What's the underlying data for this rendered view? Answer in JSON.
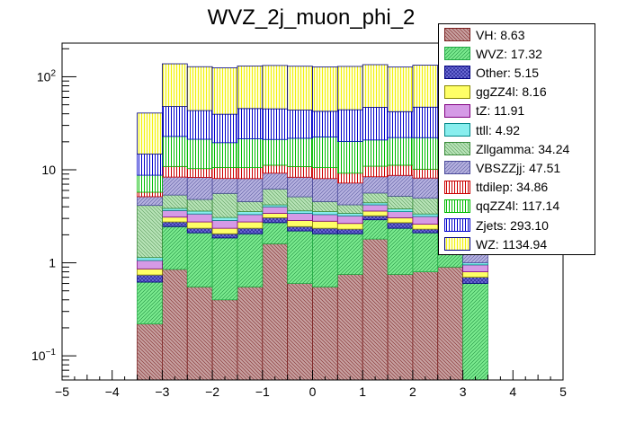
{
  "chart_data": {
    "type": "bar",
    "stacked": true,
    "title": "WVZ_2j_muon_phi_2",
    "xlabel": "",
    "ylabel": "",
    "xlim": [
      -5,
      5
    ],
    "ylim": [
      0.055,
      230
    ],
    "ylog": true,
    "grid": false,
    "legend_position": "top-right",
    "bin_edges": [
      -3.5,
      -3.0,
      -2.5,
      -2.0,
      -1.5,
      -1.0,
      -0.5,
      0.0,
      0.5,
      1.0,
      1.5,
      2.0,
      2.5,
      3.0,
      3.5
    ],
    "x_ticks": [
      "−5",
      "−4",
      "−3",
      "−2",
      "−1",
      "0",
      "1",
      "2",
      "3",
      "4",
      "5"
    ],
    "y_ticks": [
      {
        "value": 0.1,
        "base": "10",
        "exp": "−1"
      },
      {
        "value": 1,
        "label": "1"
      },
      {
        "value": 10,
        "label": "10"
      },
      {
        "value": 100,
        "base": "10",
        "exp": "2"
      }
    ],
    "series": [
      {
        "name": "VH",
        "legend": "VH: 8.63",
        "color": "#c8a2a2",
        "edge": "#7a2020",
        "pattern": "hatch-left",
        "values": [
          0.22,
          0.85,
          0.55,
          0.4,
          0.55,
          1.6,
          0.6,
          0.55,
          0.75,
          1.8,
          0.75,
          0.8,
          0.9,
          0.0
        ]
      },
      {
        "name": "WVZ",
        "legend": "WVZ: 17.32",
        "color": "#7cec90",
        "edge": "#22aa44",
        "pattern": "hatch-right",
        "values": [
          0.4,
          1.6,
          1.55,
          1.45,
          1.5,
          1.1,
          1.6,
          1.5,
          1.3,
          1.1,
          1.6,
          1.3,
          1.4,
          0.6
        ]
      },
      {
        "name": "Other",
        "legend": "Other: 5.15",
        "color": "#6f6fd8",
        "edge": "#000080",
        "pattern": "crosshatch",
        "values": [
          0.12,
          0.3,
          0.25,
          0.2,
          0.3,
          0.35,
          0.25,
          0.3,
          0.25,
          0.3,
          0.35,
          0.2,
          0.25,
          0.1
        ]
      },
      {
        "name": "ggZZ4l",
        "legend": "ggZZ4l: 8.16",
        "color": "#ffff66",
        "edge": "#888800",
        "pattern": "solid",
        "values": [
          0.12,
          0.35,
          0.4,
          0.3,
          0.4,
          0.35,
          0.4,
          0.45,
          0.35,
          0.4,
          0.35,
          0.3,
          0.35,
          0.1
        ]
      },
      {
        "name": "tZ",
        "legend": "tZ: 11.91",
        "color": "#d59ae6",
        "edge": "#800080",
        "pattern": "solid",
        "values": [
          0.2,
          0.55,
          0.6,
          0.5,
          0.55,
          0.6,
          0.55,
          0.5,
          0.55,
          0.6,
          0.5,
          0.55,
          0.5,
          0.15
        ]
      },
      {
        "name": "ttll",
        "legend": "ttll: 4.92",
        "color": "#88eeee",
        "edge": "#008888",
        "pattern": "solid",
        "values": [
          0.08,
          0.2,
          0.25,
          0.22,
          0.25,
          0.2,
          0.22,
          0.25,
          0.2,
          0.22,
          0.25,
          0.2,
          0.2,
          0.05
        ]
      },
      {
        "name": "Zllgamma",
        "legend": "Zllgamma: 34.24",
        "color": "#b8e4b8",
        "edge": "#3a8a3a",
        "pattern": "hatch-left",
        "values": [
          3.0,
          1.5,
          1.2,
          2.5,
          1.0,
          2.0,
          1.5,
          1.0,
          0.8,
          1.2,
          1.4,
          1.6,
          2.8,
          0.0
        ]
      },
      {
        "name": "VBSZZjj",
        "legend": "VBSZZjj: 47.51",
        "color": "#b6b2e0",
        "edge": "#4a4a9a",
        "pattern": "hatch-right",
        "values": [
          1.0,
          3.0,
          3.5,
          2.5,
          3.5,
          3.0,
          3.2,
          3.5,
          3.0,
          2.8,
          3.5,
          3.2,
          2.5,
          0.8
        ]
      },
      {
        "name": "ttdilep",
        "legend": "ttdilep: 34.86",
        "color": "#ffffff",
        "edge": "#cc0000",
        "pattern": "vlines",
        "values": [
          0.6,
          2.5,
          2.0,
          2.5,
          2.5,
          2.0,
          2.5,
          2.5,
          2.0,
          2.5,
          2.5,
          2.0,
          2.5,
          0.8
        ]
      },
      {
        "name": "qqZZ4l",
        "legend": "qqZZ4l: 117.14",
        "color": "#ffffff",
        "edge": "#00bb00",
        "pattern": "vlines",
        "values": [
          3.0,
          12.0,
          11.0,
          9.0,
          11.0,
          10.0,
          11.0,
          12.0,
          11.0,
          10.0,
          11.0,
          12.0,
          10.0,
          4.0
        ]
      },
      {
        "name": "Zjets",
        "legend": "Zjets: 293.10",
        "color": "#ffffff",
        "edge": "#0000cc",
        "pattern": "vlines",
        "values": [
          6.0,
          25.0,
          22.0,
          20.0,
          24.0,
          24.0,
          22.0,
          20.0,
          24.0,
          26.0,
          20.0,
          25.0,
          24.0,
          8.0
        ]
      },
      {
        "name": "WZ",
        "legend": "WZ: 1134.94",
        "color": "#ffffa0",
        "edge": "#000080",
        "pattern": "vlines-yellow",
        "values": [
          26.0,
          90.0,
          85.0,
          85.0,
          85.0,
          87.0,
          86.0,
          85.0,
          85.0,
          88.0,
          85.0,
          86.0,
          83.0,
          30.0
        ]
      }
    ]
  }
}
